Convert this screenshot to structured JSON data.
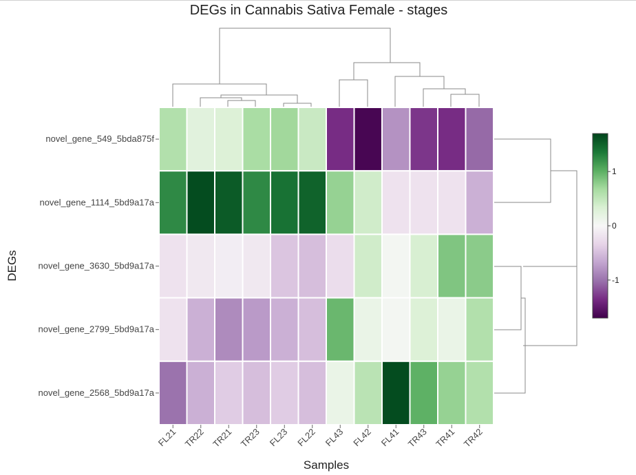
{
  "chart_data": {
    "type": "heatmap",
    "title": "DEGs in Cannabis Sativa Female - stages",
    "xlabel": "Samples",
    "ylabel": "DEGs",
    "columns": [
      "FL21",
      "TR22",
      "TR21",
      "TR23",
      "FL23",
      "FL22",
      "FL43",
      "FL42",
      "FL41",
      "TR43",
      "TR41",
      "TR42"
    ],
    "rows": [
      "novel_gene_549_5bda875f",
      "novel_gene_1114_5bd9a17a",
      "novel_gene_3630_5bd9a17a",
      "novel_gene_2799_5bd9a17a",
      "novel_gene_2568_5bd9a17a"
    ],
    "values": [
      [
        0.6,
        0.25,
        0.3,
        0.65,
        0.7,
        0.45,
        -1.35,
        -1.65,
        -0.8,
        -1.3,
        -1.35,
        -1.05
      ],
      [
        1.25,
        1.65,
        1.55,
        1.25,
        1.4,
        1.5,
        0.75,
        0.4,
        -0.2,
        -0.2,
        -0.2,
        -0.6
      ],
      [
        -0.2,
        -0.15,
        -0.1,
        -0.15,
        -0.45,
        -0.5,
        -0.25,
        0.4,
        0.05,
        0.35,
        0.85,
        0.8
      ],
      [
        -0.2,
        -0.6,
        -0.85,
        -0.75,
        -0.6,
        -0.5,
        0.95,
        0.15,
        0.05,
        0.3,
        0.15,
        0.6
      ],
      [
        -1.0,
        -0.6,
        -0.4,
        -0.5,
        -0.4,
        -0.5,
        0.15,
        0.55,
        1.65,
        1.0,
        0.75,
        0.6
      ]
    ],
    "colorbar": {
      "ticks": [
        1,
        0,
        -1
      ],
      "range": [
        -1.7,
        1.7
      ]
    },
    "colorscale": [
      "#40004b",
      "#762a83",
      "#9970ab",
      "#c2a5cf",
      "#e7d4e8",
      "#f7f7f7",
      "#d9f0d3",
      "#a6dba0",
      "#5aae61",
      "#1b7837",
      "#00441b"
    ],
    "col_dendrogram": [
      [
        412,
        156,
        412,
        150,
        452,
        150,
        452,
        156
      ],
      [
        331,
        156,
        331,
        146,
        371,
        146,
        371,
        156
      ],
      [
        291,
        156,
        291,
        142,
        351,
        142,
        351,
        146
      ],
      [
        321,
        142,
        321,
        138,
        432,
        138,
        432,
        150
      ],
      [
        251,
        156,
        251,
        122,
        387,
        122,
        387,
        138
      ],
      [
        655,
        156,
        655,
        137,
        696,
        137,
        696,
        156
      ],
      [
        615,
        156,
        615,
        129,
        676,
        129,
        676,
        137
      ],
      [
        574,
        156,
        574,
        111,
        645,
        111,
        645,
        129
      ],
      [
        493,
        156,
        493,
        116,
        534,
        116,
        534,
        156
      ],
      [
        514,
        116,
        514,
        91,
        610,
        91,
        610,
        111
      ],
      [
        319,
        122,
        319,
        41,
        567,
        41,
        567,
        91
      ]
    ],
    "row_dendrogram": [
      [
        716,
        202,
        800,
        202,
        800,
        294,
        716,
        294
      ],
      [
        716,
        387,
        757,
        387,
        757,
        479,
        716,
        479
      ],
      [
        757,
        433,
        763,
        433,
        763,
        571,
        716,
        571
      ],
      [
        760,
        387,
        838,
        387,
        838,
        502,
        760,
        502
      ],
      [
        800,
        248,
        838,
        248,
        838,
        387
      ]
    ]
  }
}
